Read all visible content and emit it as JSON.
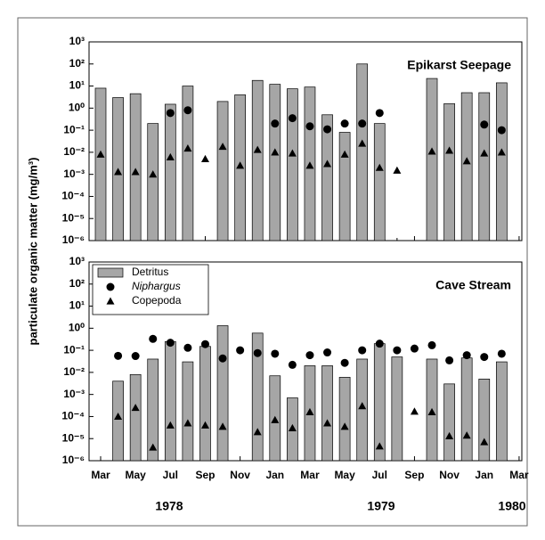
{
  "y_label": "particulate organic matter (mg/m³)",
  "chart_data": [
    {
      "type": "bar",
      "title": "Epikarst Seepage",
      "log_y": true,
      "ylim": [
        1e-06,
        1000
      ],
      "yticks": [
        {
          "value": 1000,
          "label": "10³"
        },
        {
          "value": 100,
          "label": "10²"
        },
        {
          "value": 10,
          "label": "10¹"
        },
        {
          "value": 1,
          "label": "10⁰"
        },
        {
          "value": 0.1,
          "label": "10⁻¹"
        },
        {
          "value": 0.01,
          "label": "10⁻²"
        },
        {
          "value": 0.001,
          "label": "10⁻³"
        },
        {
          "value": 0.0001,
          "label": "10⁻⁴"
        },
        {
          "value": 1e-05,
          "label": "10⁻⁵"
        },
        {
          "value": 1e-06,
          "label": "10⁻⁶"
        }
      ],
      "series": [
        {
          "marker": "bar",
          "color": "#a6a6a6",
          "values": [
            8,
            3,
            4.5,
            0.2,
            1.5,
            10,
            null,
            2,
            4,
            18,
            12,
            7.5,
            9,
            0.5,
            0.08,
            100,
            0.2,
            null,
            null,
            22,
            1.6,
            5,
            5,
            14,
            null
          ]
        },
        {
          "marker": "circle",
          "color": "#000000",
          "values": [
            null,
            null,
            null,
            null,
            0.6,
            0.8,
            null,
            null,
            null,
            null,
            0.2,
            0.35,
            0.15,
            0.11,
            0.2,
            0.2,
            0.6,
            null,
            null,
            null,
            null,
            null,
            0.18,
            0.1,
            null
          ]
        },
        {
          "marker": "triangle",
          "color": "#000000",
          "values": [
            0.008,
            0.0013,
            0.0013,
            0.001,
            0.006,
            0.015,
            0.005,
            0.018,
            0.0025,
            0.013,
            0.01,
            0.009,
            0.0025,
            0.003,
            0.008,
            0.025,
            0.002,
            0.0015,
            null,
            0.011,
            0.012,
            0.004,
            0.009,
            0.01,
            null
          ]
        }
      ]
    },
    {
      "type": "bar",
      "title": "Cave Stream",
      "log_y": true,
      "ylim": [
        1e-06,
        1000
      ],
      "yticks": [
        {
          "value": 1000,
          "label": "10³"
        },
        {
          "value": 100,
          "label": "10²"
        },
        {
          "value": 10,
          "label": "10¹"
        },
        {
          "value": 1,
          "label": "10⁰"
        },
        {
          "value": 0.1,
          "label": "10⁻¹"
        },
        {
          "value": 0.01,
          "label": "10⁻²"
        },
        {
          "value": 0.001,
          "label": "10⁻³"
        },
        {
          "value": 0.0001,
          "label": "10⁻⁴"
        },
        {
          "value": 1e-05,
          "label": "10⁻⁵"
        },
        {
          "value": 1e-06,
          "label": "10⁻⁶"
        }
      ],
      "categories": [
        "Mar",
        null,
        "May",
        null,
        "Jul",
        null,
        "Sep",
        null,
        "Nov",
        null,
        "Jan",
        null,
        "Mar",
        null,
        "May",
        null,
        "Jul",
        null,
        "Sep",
        null,
        "Nov",
        null,
        "Jan",
        null,
        "Mar"
      ],
      "years": [
        "1978",
        "1979",
        "1980"
      ],
      "legend": "upper left",
      "series": [
        {
          "name": "Detritus",
          "marker": "bar",
          "color": "#a6a6a6",
          "values": [
            null,
            0.004,
            0.008,
            0.04,
            0.25,
            0.03,
            0.15,
            1.3,
            null,
            0.6,
            0.007,
            0.0007,
            0.02,
            0.02,
            0.006,
            0.04,
            0.2,
            0.05,
            null,
            0.04,
            0.003,
            0.045,
            0.005,
            0.03,
            null
          ]
        },
        {
          "name": "Niphargus",
          "marker": "circle",
          "color": "#000000",
          "values": [
            null,
            0.056,
            0.055,
            0.33,
            0.22,
            0.13,
            0.19,
            0.043,
            0.1,
            0.075,
            0.07,
            0.022,
            0.06,
            0.08,
            0.027,
            0.1,
            0.2,
            0.1,
            0.12,
            0.17,
            0.035,
            0.06,
            0.05,
            0.07,
            null
          ]
        },
        {
          "name": "Copepoda",
          "marker": "triangle",
          "color": "#000000",
          "values": [
            null,
            0.0001,
            0.00025,
            4e-06,
            4e-05,
            5e-05,
            4e-05,
            3.5e-05,
            null,
            2e-05,
            7e-05,
            3e-05,
            0.00016,
            5e-05,
            3.5e-05,
            0.0003,
            4.5e-06,
            null,
            0.00017,
            0.00016,
            1.3e-05,
            1.4e-05,
            7e-06,
            null,
            null
          ]
        }
      ]
    }
  ]
}
